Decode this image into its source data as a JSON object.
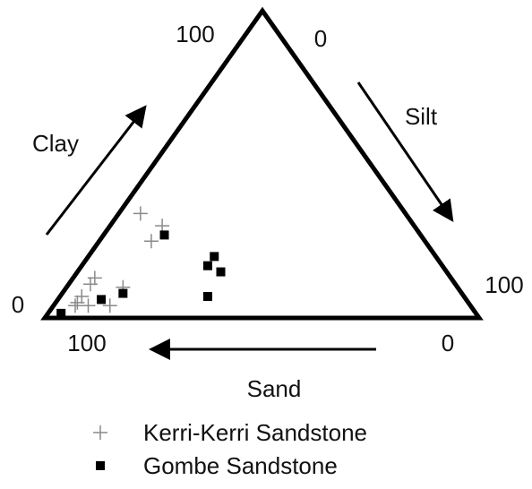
{
  "chart_data": {
    "type": "ternary",
    "axes": {
      "clay": {
        "label": "Clay",
        "ticks": [
          0,
          100
        ]
      },
      "silt": {
        "label": "Silt",
        "ticks": [
          0,
          100
        ]
      },
      "sand": {
        "label": "Sand",
        "ticks": [
          0,
          100
        ]
      }
    },
    "series": [
      {
        "name": "Kerri-Kerri Sandstone",
        "marker": "plus",
        "color": "#8a8a8a",
        "clay": [
          34,
          30,
          25,
          13,
          11,
          7,
          5,
          4,
          4,
          10,
          4
        ],
        "silt": [
          5,
          12,
          12,
          5,
          5,
          5,
          5,
          8,
          13,
          13,
          5
        ],
        "sand": [
          61,
          58,
          63,
          82,
          84,
          88,
          90,
          88,
          83,
          77,
          91
        ]
      },
      {
        "name": "Gombe Sandstone",
        "marker": "square",
        "color": "#000000",
        "clay": [
          27,
          20,
          17,
          15,
          7,
          8,
          6,
          1.5
        ],
        "silt": [
          14,
          29,
          29,
          33,
          34,
          14,
          10,
          3
        ],
        "sand": [
          59,
          51,
          54,
          52,
          59,
          78,
          84,
          95.5
        ]
      }
    ]
  }
}
